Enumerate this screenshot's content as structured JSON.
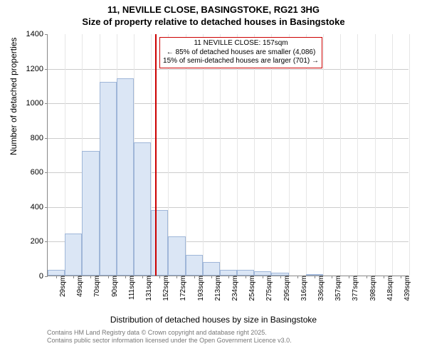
{
  "title": {
    "line1": "11, NEVILLE CLOSE, BASINGSTOKE, RG21 3HG",
    "line2": "Size of property relative to detached houses in Basingstoke"
  },
  "chart": {
    "type": "histogram",
    "ylabel": "Number of detached properties",
    "xlabel": "Distribution of detached houses by size in Basingstoke",
    "ylim": [
      0,
      1400
    ],
    "ytick_step": 200,
    "xlim_index": [
      0,
      21
    ],
    "categories": [
      "29sqm",
      "49sqm",
      "70sqm",
      "90sqm",
      "111sqm",
      "131sqm",
      "152sqm",
      "172sqm",
      "193sqm",
      "213sqm",
      "234sqm",
      "254sqm",
      "275sqm",
      "295sqm",
      "316sqm",
      "336sqm",
      "357sqm",
      "377sqm",
      "398sqm",
      "418sqm",
      "439sqm"
    ],
    "values": [
      35,
      245,
      720,
      1120,
      1140,
      770,
      380,
      225,
      120,
      80,
      35,
      35,
      25,
      15,
      0,
      10,
      0,
      0,
      0,
      0,
      0
    ],
    "bar_fill": "#dbe6f5",
    "bar_stroke": "#9fb6d8",
    "grid_color": "#cccccc",
    "axis_color": "#888888",
    "reference_line": {
      "x_value_sqm": 157,
      "color": "#cc0000"
    },
    "annotation": {
      "line1": "11 NEVILLE CLOSE: 157sqm",
      "line2": "← 85% of detached houses are smaller (4,086)",
      "line3": "15% of semi-detached houses are larger (701) →",
      "border_color": "#cc0000",
      "background": "#ffffff",
      "fontsize": 10
    },
    "background_color": "#ffffff",
    "label_fontsize": 12,
    "tick_fontsize": 11
  },
  "footer": {
    "line1": "Contains HM Land Registry data © Crown copyright and database right 2025.",
    "line2": "Contains public sector information licensed under the Open Government Licence v3.0."
  }
}
